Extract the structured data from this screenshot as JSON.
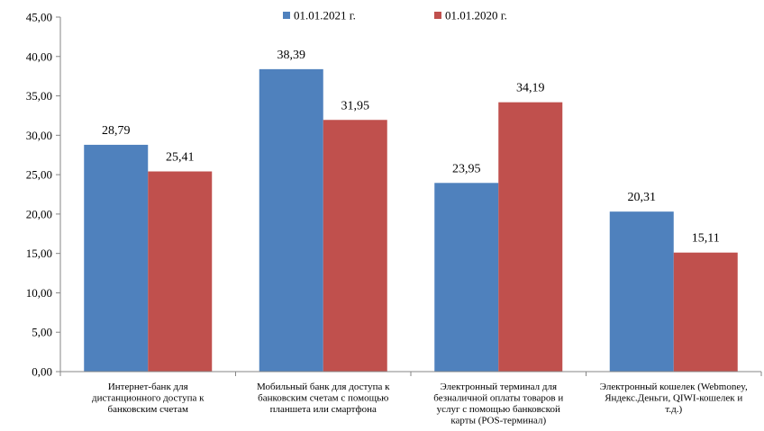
{
  "chart_data": {
    "type": "bar",
    "categories": [
      [
        "Интернет-банк для",
        "дистанционного доступа к",
        "банковским  счетам"
      ],
      [
        "Мобильный банк для доступа к",
        "банковским  счетам с помощью",
        "планшета или смартфона"
      ],
      [
        "Электронный терминал для",
        "безналичной оплаты товаров и",
        "услуг с помощью банковской",
        "карты (POS-терминал)"
      ],
      [
        "Электронный кошелек (Webmoney,",
        "Яндекс.Деньги,  QIWI-кошелек и",
        "т.д.)"
      ]
    ],
    "series": [
      {
        "name": "01.01.2021  г.",
        "color": "#4F81BD",
        "values": [
          28.79,
          38.39,
          23.95,
          20.31
        ],
        "labels": [
          "28,79",
          "38,39",
          "23,95",
          "20,31"
        ]
      },
      {
        "name": "01.01.2020  г.",
        "color": "#C0504D",
        "values": [
          25.41,
          31.95,
          34.19,
          15.11
        ],
        "labels": [
          "25,41",
          "31,95",
          "34,19",
          "15,11"
        ]
      }
    ],
    "ylim": [
      0,
      45
    ],
    "yticks": [
      "0,00",
      "5,00",
      "10,00",
      "15,00",
      "20,00",
      "25,00",
      "30,00",
      "35,00",
      "40,00",
      "45,00"
    ],
    "legend_position": "top-center",
    "grid": false
  }
}
